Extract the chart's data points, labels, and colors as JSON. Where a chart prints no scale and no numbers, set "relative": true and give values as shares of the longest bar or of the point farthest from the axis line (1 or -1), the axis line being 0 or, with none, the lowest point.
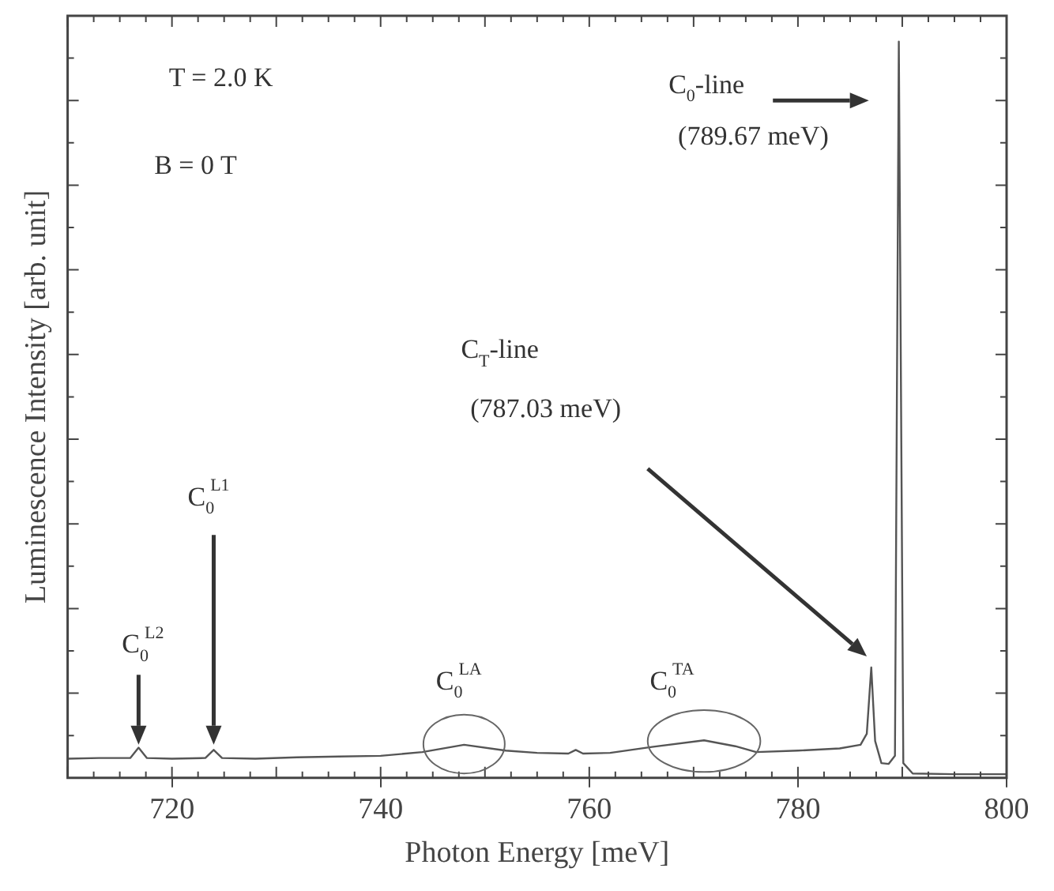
{
  "chart_data": {
    "type": "line",
    "relative": true,
    "xlabel": "Photon Energy [meV]",
    "ylabel": "Luminescence Intensity [arb. unit]",
    "x": [
      710,
      713,
      716,
      716.8,
      717.6,
      720,
      723.2,
      724,
      724.8,
      728,
      732,
      736,
      740,
      744,
      748,
      752,
      755,
      758,
      758.7,
      759.4,
      762,
      766,
      771,
      774,
      776,
      780,
      784,
      786,
      786.6,
      787.03,
      787.4,
      788,
      788.7,
      789.3,
      789.67,
      790.1,
      791,
      795,
      800
    ],
    "series": [
      {
        "color": "#555555",
        "values": [
          0.026,
          0.027,
          0.027,
          0.041,
          0.027,
          0.026,
          0.027,
          0.038,
          0.027,
          0.026,
          0.028,
          0.029,
          0.03,
          0.035,
          0.045,
          0.037,
          0.034,
          0.033,
          0.038,
          0.033,
          0.034,
          0.042,
          0.051,
          0.043,
          0.035,
          0.037,
          0.04,
          0.045,
          0.06,
          0.15,
          0.05,
          0.02,
          0.019,
          0.03,
          1,
          0.02,
          0.006,
          0.005,
          0.005
        ]
      }
    ],
    "xlim": [
      710,
      800
    ],
    "xticks": [
      720,
      740,
      760,
      780,
      800
    ],
    "grid": false,
    "legend": false,
    "marker": "none",
    "line_style": "solid",
    "annotations": [
      "T = 2.0 K",
      "B = 0 T",
      "C$_{0}$-line",
      "(789.67 meV)",
      "C$_{T}$-line",
      "(787.03 meV)",
      "C$_{0}$$^{L1}$",
      "C$_{0}$$^{L2}$",
      "C$_{0}$$^{LA}$",
      "C$_{0}$$^{TA}$"
    ]
  }
}
